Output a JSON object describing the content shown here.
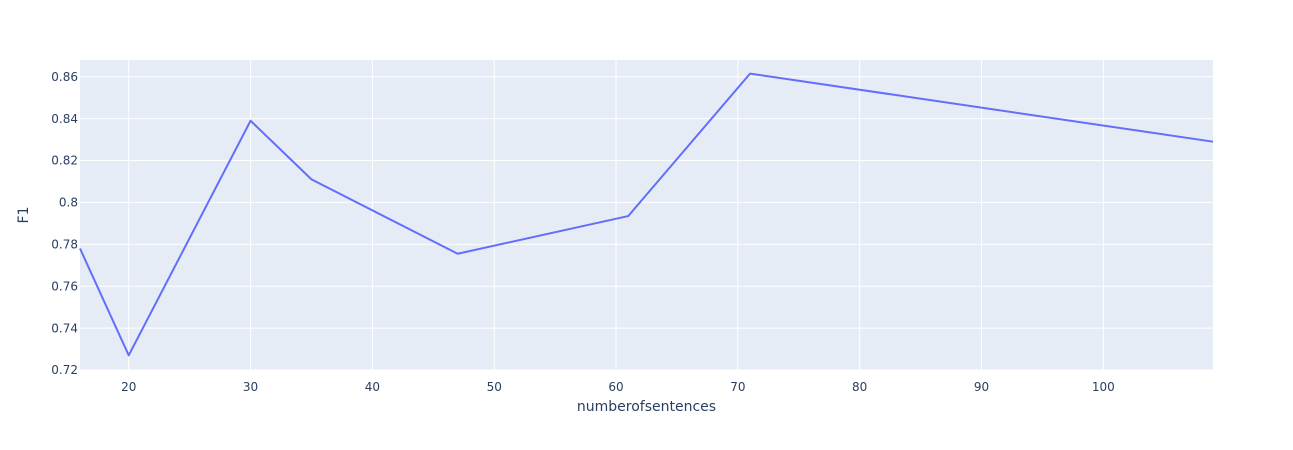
{
  "chart_data": {
    "type": "line",
    "title": "",
    "xlabel": "numberofsentences",
    "ylabel": "F1",
    "xlim": [
      16,
      109
    ],
    "ylim": [
      0.72,
      0.868
    ],
    "x_ticks": [
      20,
      30,
      40,
      50,
      60,
      70,
      80,
      90,
      100
    ],
    "x_tick_labels": [
      "20",
      "30",
      "40",
      "50",
      "60",
      "70",
      "80",
      "90",
      "100"
    ],
    "y_ticks": [
      0.72,
      0.74,
      0.76,
      0.78,
      0.8,
      0.82,
      0.84,
      0.86
    ],
    "y_tick_labels": [
      "0.72",
      "0.74",
      "0.76",
      "0.78",
      "0.8",
      "0.82",
      "0.84",
      "0.86"
    ],
    "grid": true,
    "series": [
      {
        "color": "#636efa",
        "x": [
          16,
          20,
          30,
          35,
          47,
          61,
          71,
          109
        ],
        "y": [
          0.778,
          0.727,
          0.839,
          0.811,
          0.7755,
          0.7935,
          0.8615,
          0.829
        ]
      }
    ],
    "colors": {
      "plot_bg": "#e5ecf6",
      "grid": "#ffffff",
      "text": "#2a3f5f"
    }
  }
}
